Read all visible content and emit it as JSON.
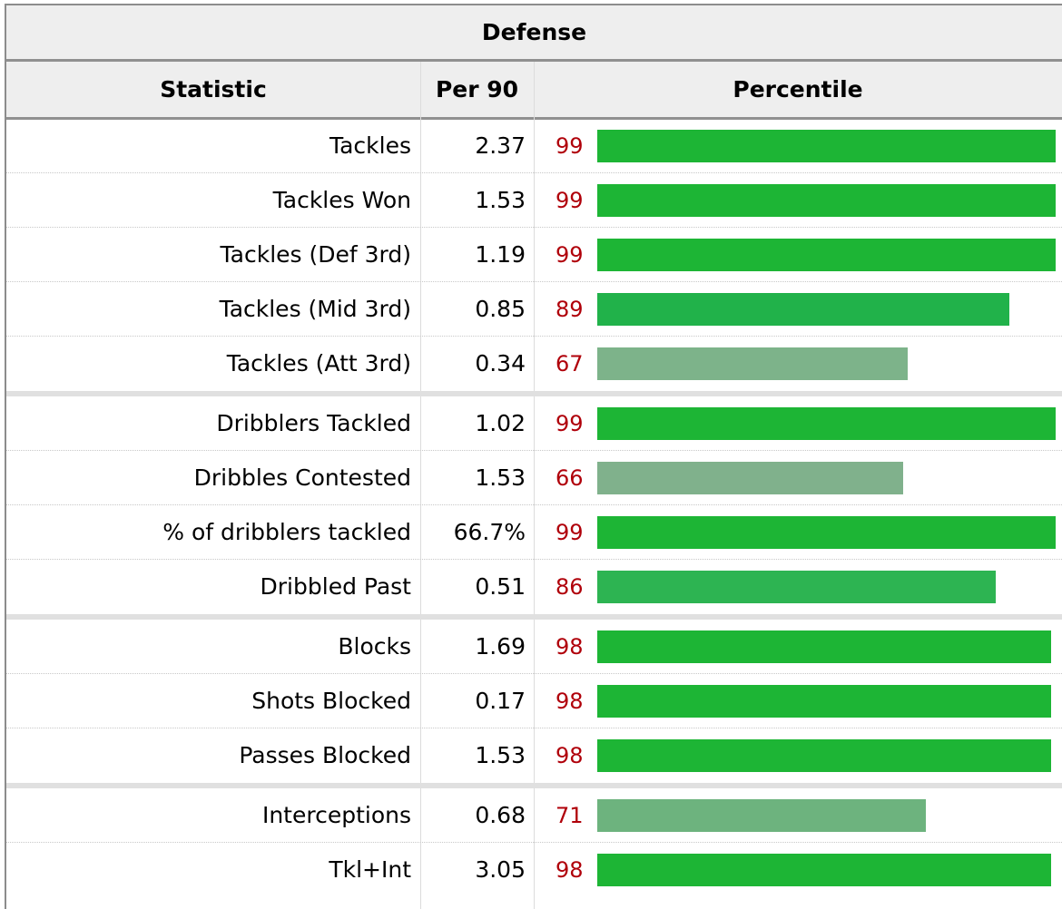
{
  "table": {
    "title": "Defense",
    "headers": {
      "statistic": "Statistic",
      "per90": "Per 90",
      "percentile": "Percentile"
    },
    "groups": [
      [
        {
          "stat": "Tackles",
          "per90": "2.37",
          "percentile": 99
        },
        {
          "stat": "Tackles Won",
          "per90": "1.53",
          "percentile": 99
        },
        {
          "stat": "Tackles (Def 3rd)",
          "per90": "1.19",
          "percentile": 99
        },
        {
          "stat": "Tackles (Mid 3rd)",
          "per90": "0.85",
          "percentile": 89
        },
        {
          "stat": "Tackles (Att 3rd)",
          "per90": "0.34",
          "percentile": 67
        }
      ],
      [
        {
          "stat": "Dribblers Tackled",
          "per90": "1.02",
          "percentile": 99
        },
        {
          "stat": "Dribbles Contested",
          "per90": "1.53",
          "percentile": 66
        },
        {
          "stat": "% of dribblers tackled",
          "per90": "66.7%",
          "percentile": 99
        },
        {
          "stat": "Dribbled Past",
          "per90": "0.51",
          "percentile": 86
        }
      ],
      [
        {
          "stat": "Blocks",
          "per90": "1.69",
          "percentile": 98
        },
        {
          "stat": "Shots Blocked",
          "per90": "0.17",
          "percentile": 98
        },
        {
          "stat": "Passes Blocked",
          "per90": "1.53",
          "percentile": 98
        }
      ],
      [
        {
          "stat": "Interceptions",
          "per90": "0.68",
          "percentile": 71
        },
        {
          "stat": "Tkl+Int",
          "per90": "3.05",
          "percentile": 98
        }
      ]
    ]
  },
  "colors": {
    "percentile_text": "#b0000a",
    "bar_99": "#1db535",
    "bar_98": "#1db535",
    "bar_89": "#21b24a",
    "bar_86": "#2db452",
    "bar_71": "#6db37e",
    "bar_67": "#7db38a",
    "bar_66": "#80b18c"
  }
}
